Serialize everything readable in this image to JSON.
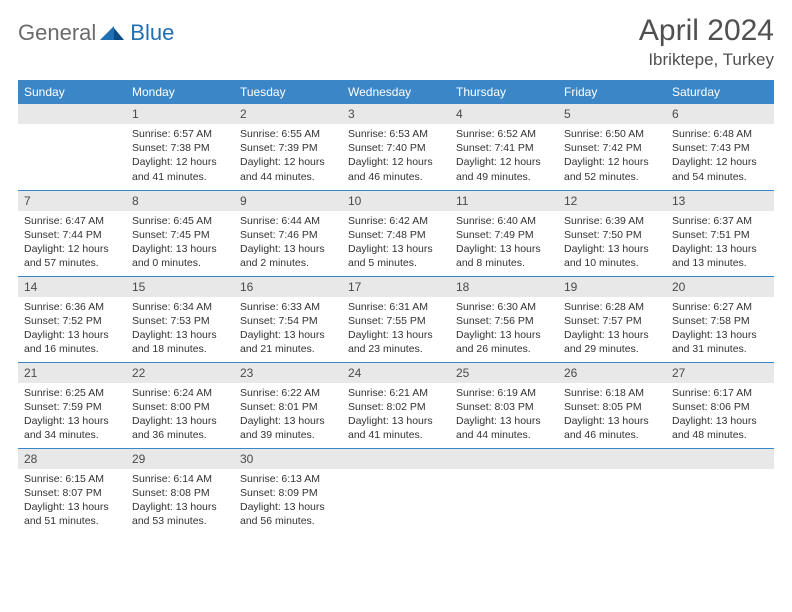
{
  "brand": {
    "part1": "General",
    "part2": "Blue"
  },
  "title": "April 2024",
  "location": "Ibriktepe, Turkey",
  "colors": {
    "header_bg": "#3b86c6",
    "header_text": "#ffffff",
    "daynum_bg": "#e8e8e8",
    "border": "#3b86c6",
    "logo_gray": "#6b6b6b",
    "logo_blue": "#1f6fb2",
    "title_color": "#505050"
  },
  "dayNames": [
    "Sunday",
    "Monday",
    "Tuesday",
    "Wednesday",
    "Thursday",
    "Friday",
    "Saturday"
  ],
  "weeks": [
    [
      {
        "n": "",
        "sr": "",
        "ss": "",
        "dl": ""
      },
      {
        "n": "1",
        "sr": "Sunrise: 6:57 AM",
        "ss": "Sunset: 7:38 PM",
        "dl": "Daylight: 12 hours and 41 minutes."
      },
      {
        "n": "2",
        "sr": "Sunrise: 6:55 AM",
        "ss": "Sunset: 7:39 PM",
        "dl": "Daylight: 12 hours and 44 minutes."
      },
      {
        "n": "3",
        "sr": "Sunrise: 6:53 AM",
        "ss": "Sunset: 7:40 PM",
        "dl": "Daylight: 12 hours and 46 minutes."
      },
      {
        "n": "4",
        "sr": "Sunrise: 6:52 AM",
        "ss": "Sunset: 7:41 PM",
        "dl": "Daylight: 12 hours and 49 minutes."
      },
      {
        "n": "5",
        "sr": "Sunrise: 6:50 AM",
        "ss": "Sunset: 7:42 PM",
        "dl": "Daylight: 12 hours and 52 minutes."
      },
      {
        "n": "6",
        "sr": "Sunrise: 6:48 AM",
        "ss": "Sunset: 7:43 PM",
        "dl": "Daylight: 12 hours and 54 minutes."
      }
    ],
    [
      {
        "n": "7",
        "sr": "Sunrise: 6:47 AM",
        "ss": "Sunset: 7:44 PM",
        "dl": "Daylight: 12 hours and 57 minutes."
      },
      {
        "n": "8",
        "sr": "Sunrise: 6:45 AM",
        "ss": "Sunset: 7:45 PM",
        "dl": "Daylight: 13 hours and 0 minutes."
      },
      {
        "n": "9",
        "sr": "Sunrise: 6:44 AM",
        "ss": "Sunset: 7:46 PM",
        "dl": "Daylight: 13 hours and 2 minutes."
      },
      {
        "n": "10",
        "sr": "Sunrise: 6:42 AM",
        "ss": "Sunset: 7:48 PM",
        "dl": "Daylight: 13 hours and 5 minutes."
      },
      {
        "n": "11",
        "sr": "Sunrise: 6:40 AM",
        "ss": "Sunset: 7:49 PM",
        "dl": "Daylight: 13 hours and 8 minutes."
      },
      {
        "n": "12",
        "sr": "Sunrise: 6:39 AM",
        "ss": "Sunset: 7:50 PM",
        "dl": "Daylight: 13 hours and 10 minutes."
      },
      {
        "n": "13",
        "sr": "Sunrise: 6:37 AM",
        "ss": "Sunset: 7:51 PM",
        "dl": "Daylight: 13 hours and 13 minutes."
      }
    ],
    [
      {
        "n": "14",
        "sr": "Sunrise: 6:36 AM",
        "ss": "Sunset: 7:52 PM",
        "dl": "Daylight: 13 hours and 16 minutes."
      },
      {
        "n": "15",
        "sr": "Sunrise: 6:34 AM",
        "ss": "Sunset: 7:53 PM",
        "dl": "Daylight: 13 hours and 18 minutes."
      },
      {
        "n": "16",
        "sr": "Sunrise: 6:33 AM",
        "ss": "Sunset: 7:54 PM",
        "dl": "Daylight: 13 hours and 21 minutes."
      },
      {
        "n": "17",
        "sr": "Sunrise: 6:31 AM",
        "ss": "Sunset: 7:55 PM",
        "dl": "Daylight: 13 hours and 23 minutes."
      },
      {
        "n": "18",
        "sr": "Sunrise: 6:30 AM",
        "ss": "Sunset: 7:56 PM",
        "dl": "Daylight: 13 hours and 26 minutes."
      },
      {
        "n": "19",
        "sr": "Sunrise: 6:28 AM",
        "ss": "Sunset: 7:57 PM",
        "dl": "Daylight: 13 hours and 29 minutes."
      },
      {
        "n": "20",
        "sr": "Sunrise: 6:27 AM",
        "ss": "Sunset: 7:58 PM",
        "dl": "Daylight: 13 hours and 31 minutes."
      }
    ],
    [
      {
        "n": "21",
        "sr": "Sunrise: 6:25 AM",
        "ss": "Sunset: 7:59 PM",
        "dl": "Daylight: 13 hours and 34 minutes."
      },
      {
        "n": "22",
        "sr": "Sunrise: 6:24 AM",
        "ss": "Sunset: 8:00 PM",
        "dl": "Daylight: 13 hours and 36 minutes."
      },
      {
        "n": "23",
        "sr": "Sunrise: 6:22 AM",
        "ss": "Sunset: 8:01 PM",
        "dl": "Daylight: 13 hours and 39 minutes."
      },
      {
        "n": "24",
        "sr": "Sunrise: 6:21 AM",
        "ss": "Sunset: 8:02 PM",
        "dl": "Daylight: 13 hours and 41 minutes."
      },
      {
        "n": "25",
        "sr": "Sunrise: 6:19 AM",
        "ss": "Sunset: 8:03 PM",
        "dl": "Daylight: 13 hours and 44 minutes."
      },
      {
        "n": "26",
        "sr": "Sunrise: 6:18 AM",
        "ss": "Sunset: 8:05 PM",
        "dl": "Daylight: 13 hours and 46 minutes."
      },
      {
        "n": "27",
        "sr": "Sunrise: 6:17 AM",
        "ss": "Sunset: 8:06 PM",
        "dl": "Daylight: 13 hours and 48 minutes."
      }
    ],
    [
      {
        "n": "28",
        "sr": "Sunrise: 6:15 AM",
        "ss": "Sunset: 8:07 PM",
        "dl": "Daylight: 13 hours and 51 minutes."
      },
      {
        "n": "29",
        "sr": "Sunrise: 6:14 AM",
        "ss": "Sunset: 8:08 PM",
        "dl": "Daylight: 13 hours and 53 minutes."
      },
      {
        "n": "30",
        "sr": "Sunrise: 6:13 AM",
        "ss": "Sunset: 8:09 PM",
        "dl": "Daylight: 13 hours and 56 minutes."
      },
      {
        "n": "",
        "sr": "",
        "ss": "",
        "dl": ""
      },
      {
        "n": "",
        "sr": "",
        "ss": "",
        "dl": ""
      },
      {
        "n": "",
        "sr": "",
        "ss": "",
        "dl": ""
      },
      {
        "n": "",
        "sr": "",
        "ss": "",
        "dl": ""
      }
    ]
  ]
}
